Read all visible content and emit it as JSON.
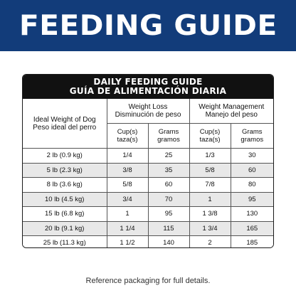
{
  "banner": {
    "title": "FEEDING GUIDE"
  },
  "guide": {
    "title_en": "DAILY FEEDING GUIDE",
    "title_es": "GUÍA DE ALIMENTACIÓN DIARIA",
    "weight_col": {
      "en": "Ideal Weight of Dog",
      "es": "Peso ideal del perro"
    },
    "groups": [
      {
        "en": "Weight Loss",
        "es": "Disminución de peso"
      },
      {
        "en": "Weight Management",
        "es": "Manejo del peso"
      }
    ],
    "subcols": {
      "cup": {
        "en": "Cup(s)",
        "es": "taza(s)"
      },
      "grams": {
        "en": "Grams",
        "es": "gramos"
      }
    },
    "rows": [
      {
        "weight": "2 lb (0.9 kg)",
        "loss_cups": "1/4",
        "loss_grams": "25",
        "mgmt_cups": "1/3",
        "mgmt_grams": "30"
      },
      {
        "weight": "5 lb (2.3 kg)",
        "loss_cups": "3/8",
        "loss_grams": "35",
        "mgmt_cups": "5/8",
        "mgmt_grams": "60"
      },
      {
        "weight": "8 lb (3.6 kg)",
        "loss_cups": "5/8",
        "loss_grams": "60",
        "mgmt_cups": "7/8",
        "mgmt_grams": "80"
      },
      {
        "weight": "10 lb (4.5 kg)",
        "loss_cups": "3/4",
        "loss_grams": "70",
        "mgmt_cups": "1",
        "mgmt_grams": "95"
      },
      {
        "weight": "15 lb (6.8 kg)",
        "loss_cups": "1",
        "loss_grams": "95",
        "mgmt_cups": "1 3/8",
        "mgmt_grams": "130"
      },
      {
        "weight": "20 lb (9.1 kg)",
        "loss_cups": "1 1/4",
        "loss_grams": "115",
        "mgmt_cups": "1 3/4",
        "mgmt_grams": "165"
      },
      {
        "weight": "25 lb (11.3 kg)",
        "loss_cups": "1 1/2",
        "loss_grams": "140",
        "mgmt_cups": "2",
        "mgmt_grams": "185"
      }
    ]
  },
  "footer": {
    "note": "Reference packaging for full details."
  }
}
